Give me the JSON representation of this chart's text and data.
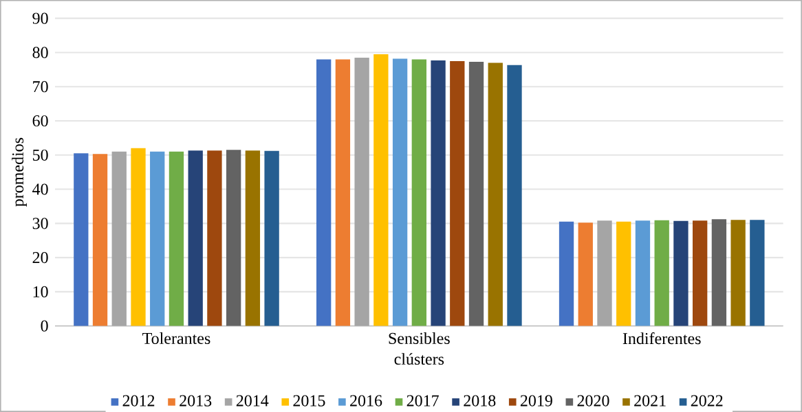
{
  "chart_data": {
    "type": "bar",
    "xlabel": "clústers",
    "ylabel": "promedios",
    "categories": [
      "Tolerantes",
      "Sensibles",
      "Indiferentes"
    ],
    "ylim": [
      0,
      90
    ],
    "yticks": [
      0,
      10,
      20,
      30,
      40,
      50,
      60,
      70,
      80,
      90
    ],
    "grid": "y",
    "legend": "bottom",
    "series": [
      {
        "name": "2012",
        "color": "#4472c4",
        "values": [
          50.5,
          78,
          30.5
        ]
      },
      {
        "name": "2013",
        "color": "#ed7d31",
        "values": [
          50.3,
          78,
          30.2
        ]
      },
      {
        "name": "2014",
        "color": "#a5a5a5",
        "values": [
          51,
          78.5,
          30.8
        ]
      },
      {
        "name": "2015",
        "color": "#ffc000",
        "values": [
          52,
          79.5,
          30.5
        ]
      },
      {
        "name": "2016",
        "color": "#5b9bd5",
        "values": [
          51,
          78.2,
          30.8
        ]
      },
      {
        "name": "2017",
        "color": "#70ad47",
        "values": [
          51,
          78,
          30.9
        ]
      },
      {
        "name": "2018",
        "color": "#264478",
        "values": [
          51.3,
          77.7,
          30.7
        ]
      },
      {
        "name": "2019",
        "color": "#9e480e",
        "values": [
          51.3,
          77.5,
          30.8
        ]
      },
      {
        "name": "2020",
        "color": "#636363",
        "values": [
          51.5,
          77.3,
          31.2
        ]
      },
      {
        "name": "2021",
        "color": "#997300",
        "values": [
          51.3,
          77,
          31
        ]
      },
      {
        "name": "2022",
        "color": "#255e91",
        "values": [
          51.2,
          76.3,
          31
        ]
      }
    ]
  }
}
